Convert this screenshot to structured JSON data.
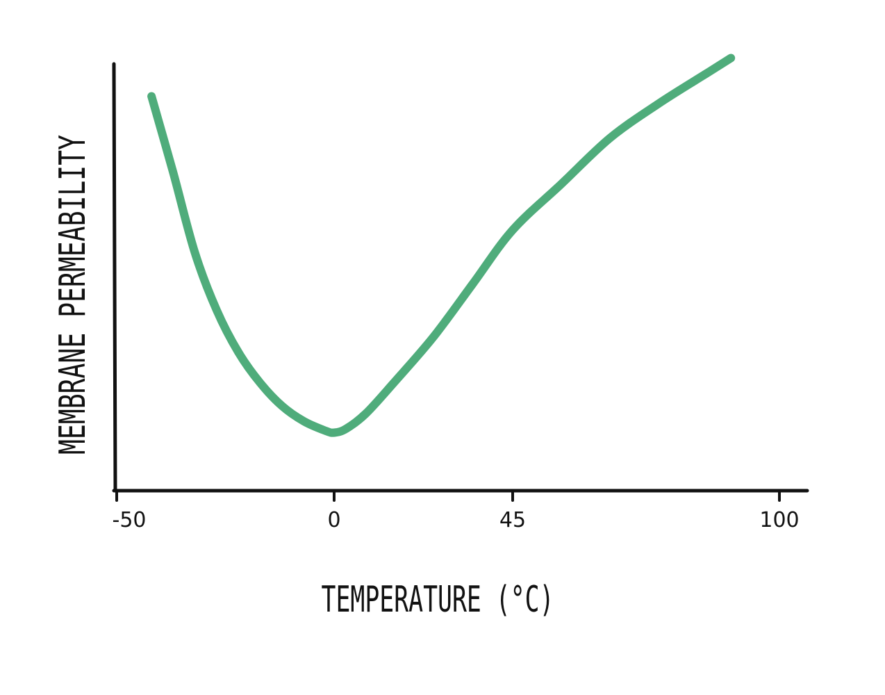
{
  "chart_data": {
    "type": "line",
    "xlabel": "TEMPERATURE (°C)",
    "ylabel": "MEMBRANE PERMEABILITY",
    "xticks": [
      -50,
      0,
      45,
      100
    ],
    "xlim": [
      -50,
      100
    ],
    "ylim": [
      0,
      10
    ],
    "yticks_shown": false,
    "grid": false,
    "legend": "none",
    "line_color": "#4fac7b",
    "axis_color": "#111111",
    "series": [
      {
        "x": [
          -42,
          -37,
          -32,
          -27,
          -22,
          -17,
          -12,
          -7,
          -2,
          0,
          3,
          8,
          15,
          25,
          35,
          45,
          55,
          65,
          75,
          85,
          90
        ],
        "y": [
          9.3,
          7.3,
          5.2,
          3.7,
          2.6,
          1.8,
          1.2,
          0.8,
          0.55,
          0.5,
          0.6,
          1.0,
          1.8,
          3.0,
          4.4,
          5.8,
          7.0,
          8.2,
          9.1,
          9.9,
          10.3
        ]
      }
    ]
  }
}
